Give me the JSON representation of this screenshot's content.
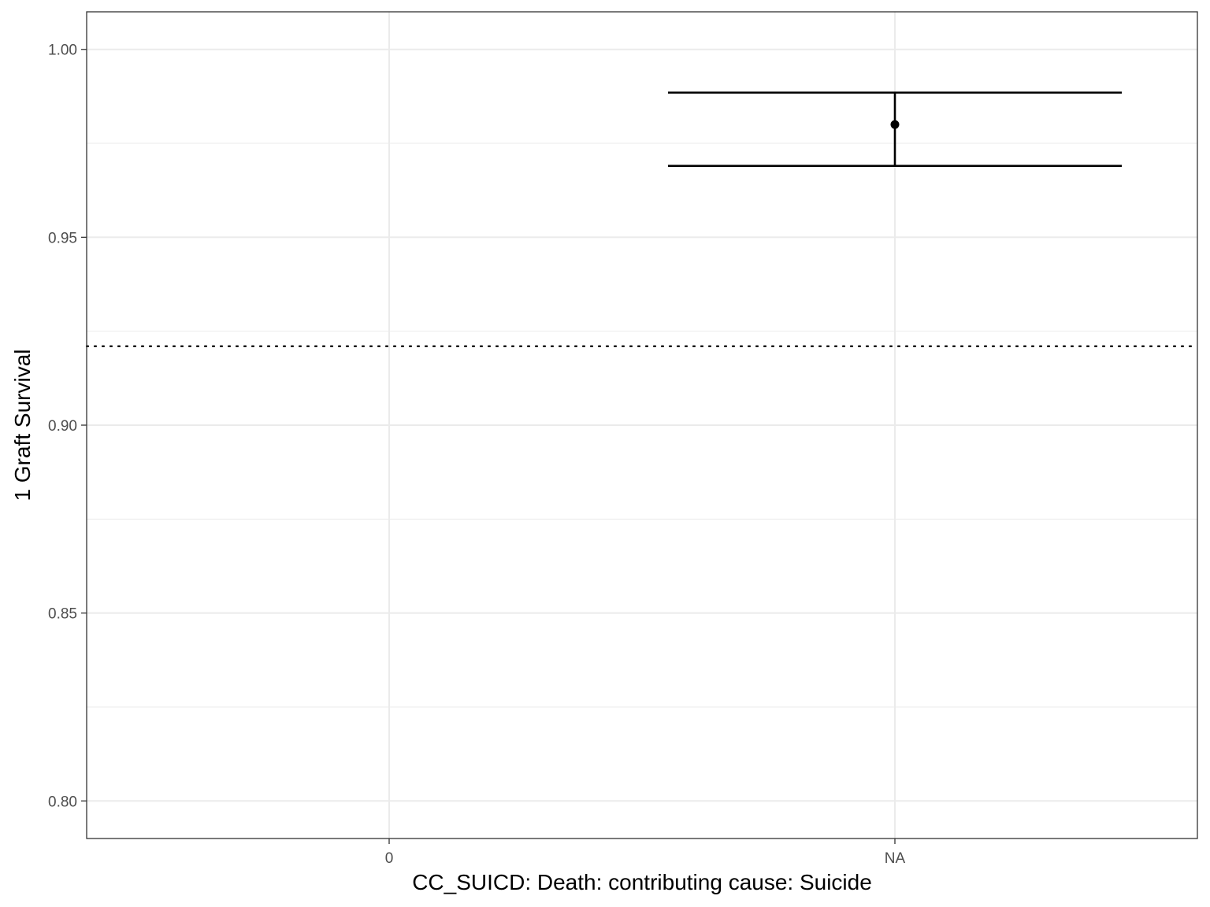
{
  "chart_data": {
    "type": "scatter",
    "title": "",
    "xlabel": "CC_SUICD: Death: contributing cause: Suicide",
    "ylabel": "1 Graft Survival",
    "categories": [
      "0",
      "NA"
    ],
    "ylim": [
      0.79,
      1.01
    ],
    "y_ticks": [
      0.8,
      0.85,
      0.9,
      0.95,
      1.0
    ],
    "y_tick_labels": [
      "0.80",
      "0.85",
      "0.90",
      "0.95",
      "1.00"
    ],
    "points": [
      {
        "category": "NA",
        "estimate": 0.98,
        "lower": 0.969,
        "upper": 0.9885
      }
    ],
    "reference_line": {
      "y": 0.921,
      "style": "dotted"
    },
    "grid": true,
    "legend": "none"
  }
}
